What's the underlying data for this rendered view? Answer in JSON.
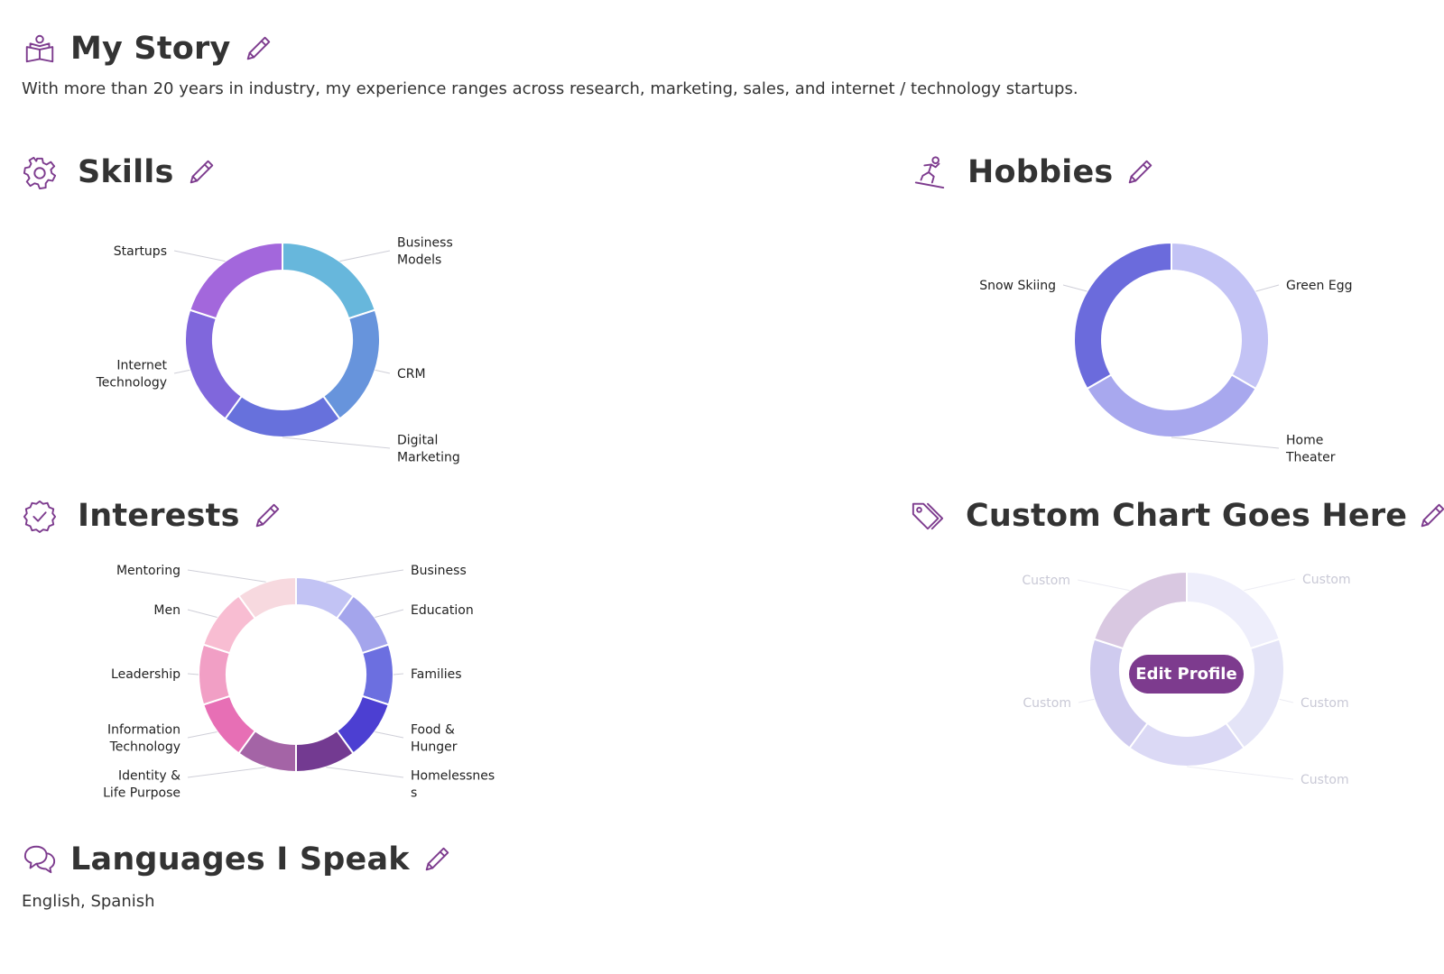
{
  "my_story": {
    "title": "My Story",
    "text": "With more than 20 years in industry, my experience ranges across research, marketing, sales, and internet / technology startups."
  },
  "skills": {
    "title": "Skills",
    "chart": {
      "segments": [
        {
          "label": "Business Models",
          "lines": [
            "Business",
            "Models"
          ],
          "color": "#67b7dc"
        },
        {
          "label": "CRM",
          "lines": [
            "CRM"
          ],
          "color": "#6794dc"
        },
        {
          "label": "Digital Marketing",
          "lines": [
            "Digital",
            "Marketing"
          ],
          "color": "#6771dc"
        },
        {
          "label": "Internet Technology",
          "lines": [
            "Internet",
            "Technology"
          ],
          "color": "#8067dc"
        },
        {
          "label": "Startups",
          "lines": [
            "Startups"
          ],
          "color": "#a367dc"
        }
      ]
    }
  },
  "hobbies": {
    "title": "Hobbies",
    "chart": {
      "segments": [
        {
          "label": "Green Egg",
          "lines": [
            "Green Egg"
          ],
          "color": "#c3c3f5",
          "value": 1
        },
        {
          "label": "Home Theater",
          "lines": [
            "Home",
            "Theater"
          ],
          "color": "#a8a8ee",
          "value": 1
        },
        {
          "label": "Snow Skiing",
          "lines": [
            "Snow Skiing"
          ],
          "color": "#6b6bdc",
          "value": 1
        }
      ]
    }
  },
  "interests": {
    "title": "Interests",
    "chart": {
      "segments": [
        {
          "label": "Business",
          "lines": [
            "Business"
          ],
          "color": "#c2c3f4"
        },
        {
          "label": "Education",
          "lines": [
            "Education"
          ],
          "color": "#a4a5ec"
        },
        {
          "label": "Families",
          "lines": [
            "Families"
          ],
          "color": "#6c6fe0"
        },
        {
          "label": "Food & Hunger",
          "lines": [
            "Food &",
            "Hunger"
          ],
          "color": "#4c3fd2"
        },
        {
          "label": "Homelessness",
          "lines": [
            "Homelessnes",
            "s"
          ],
          "color": "#733a91"
        },
        {
          "label": "Identity & Life Purpose",
          "lines": [
            "Identity &",
            "Life Purpose"
          ],
          "color": "#a464a6"
        },
        {
          "label": "Information Technology",
          "lines": [
            "Information",
            "Technology"
          ],
          "color": "#e76fb5"
        },
        {
          "label": "Leadership",
          "lines": [
            "Leadership"
          ],
          "color": "#f19fc5"
        },
        {
          "label": "Men",
          "lines": [
            "Men"
          ],
          "color": "#f8bdd2"
        },
        {
          "label": "Mentoring",
          "lines": [
            "Mentoring"
          ],
          "color": "#f7d9df"
        }
      ]
    }
  },
  "custom_chart": {
    "title": "Custom Chart Goes Here",
    "button_label": "Edit Profile",
    "chart": {
      "segments": [
        {
          "label": "Custom",
          "lines": [
            "Custom"
          ],
          "color": "#eeeefb"
        },
        {
          "label": "Custom",
          "lines": [
            "Custom"
          ],
          "color": "#e4e4f7"
        },
        {
          "label": "Custom",
          "lines": [
            "Custom"
          ],
          "color": "#dbd9f5"
        },
        {
          "label": "Custom",
          "lines": [
            "Custom"
          ],
          "color": "#cfcbef"
        },
        {
          "label": "Custom",
          "lines": [
            "Custom"
          ],
          "color": "#d9c8e1"
        }
      ]
    }
  },
  "languages": {
    "title": "Languages I Speak",
    "text": "English, Spanish"
  },
  "colors": {
    "accent": "#7d3b8e",
    "icon": "#7d3b8e"
  }
}
